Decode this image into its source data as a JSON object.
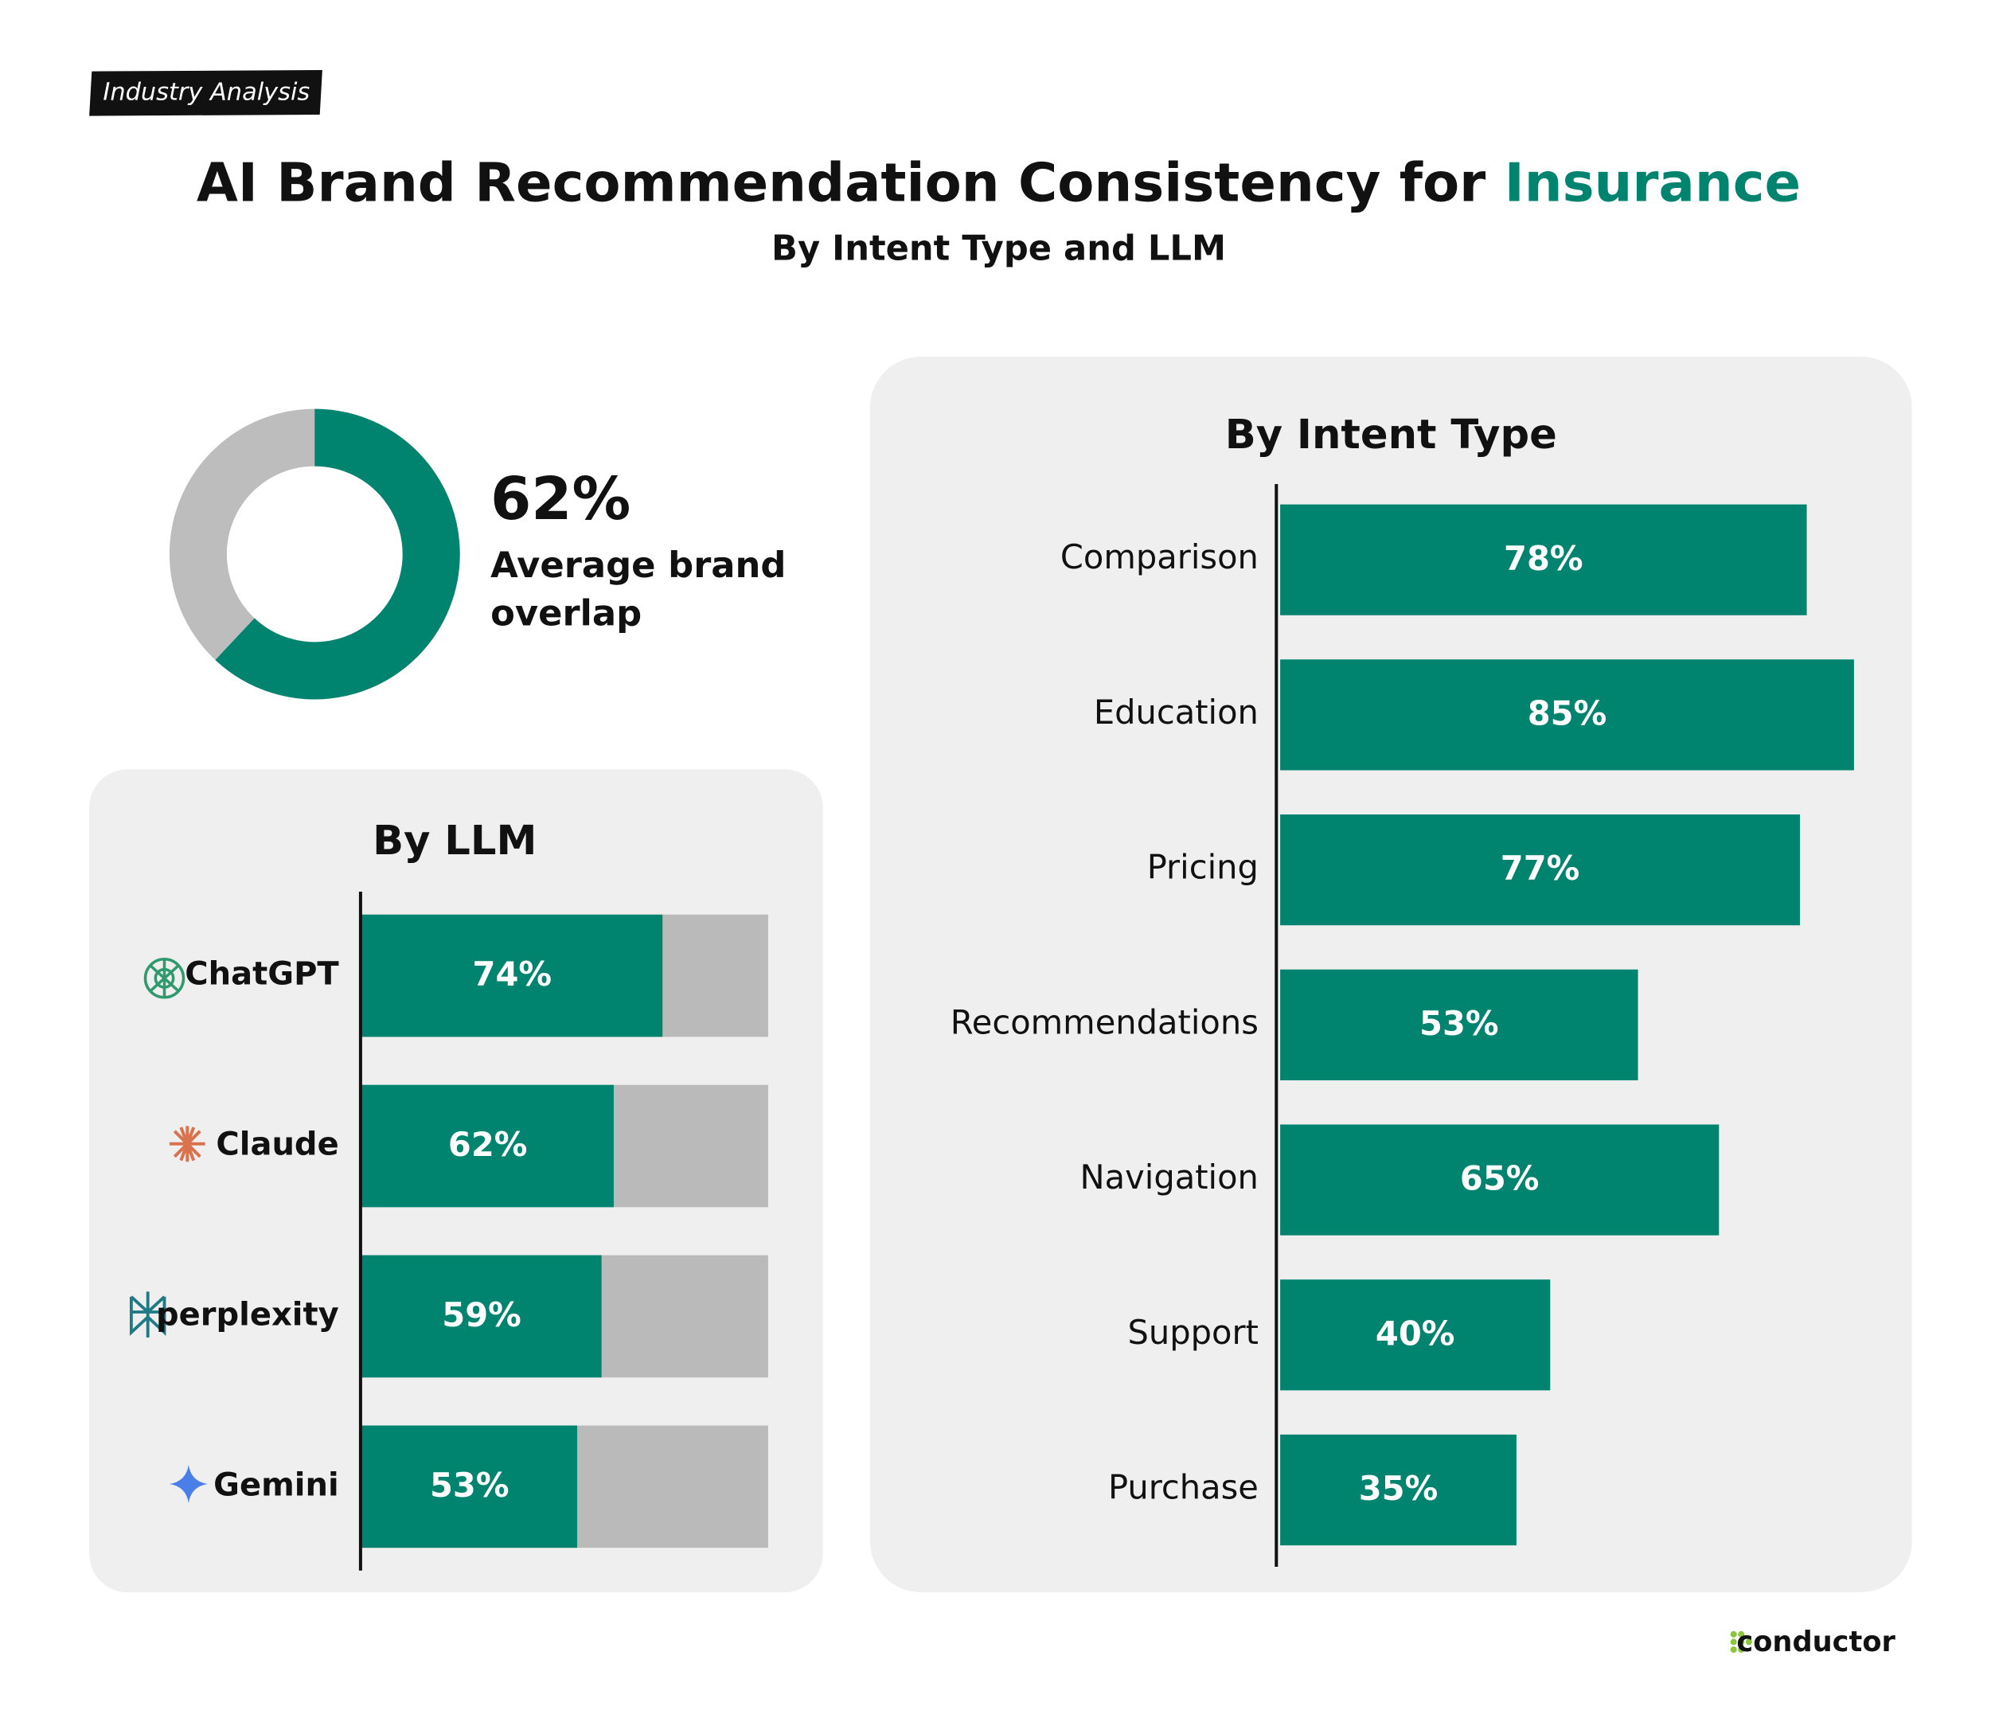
{
  "tag": "Industry Analysis",
  "title": "AI Brand Recommendation Consistency for",
  "title_highlight": "Insurance",
  "subtitle": "By Intent Type and LLM",
  "brand": "conductor",
  "chart_data": [
    {
      "type": "donut",
      "values": [
        62
      ],
      "value_labels": [
        "62%"
      ],
      "label": "Average brand overlap",
      "ylim": [
        0,
        100
      ],
      "color": "#00836f",
      "track_color": "#bdbdbd"
    },
    {
      "type": "bar",
      "orientation": "horizontal",
      "title": "By LLM",
      "categories": [
        "ChatGPT",
        "Claude",
        "perplexity",
        "Gemini"
      ],
      "values": [
        74,
        62,
        59,
        53
      ],
      "value_labels": [
        "74%",
        "62%",
        "59%",
        "53%"
      ],
      "xlim": [
        0,
        100
      ],
      "color": "#00836f",
      "track_color": "#bababa"
    },
    {
      "type": "bar",
      "orientation": "horizontal",
      "title": "By Intent Type",
      "categories": [
        "Comparison",
        "Education",
        "Pricing",
        "Recommendations",
        "Navigation",
        "Support",
        "Purchase"
      ],
      "values": [
        78,
        85,
        77,
        53,
        65,
        40,
        35
      ],
      "value_labels": [
        "78%",
        "85%",
        "77%",
        "53%",
        "65%",
        "40%",
        "35%"
      ],
      "xlim": [
        0,
        100
      ],
      "color": "#00836f"
    }
  ]
}
